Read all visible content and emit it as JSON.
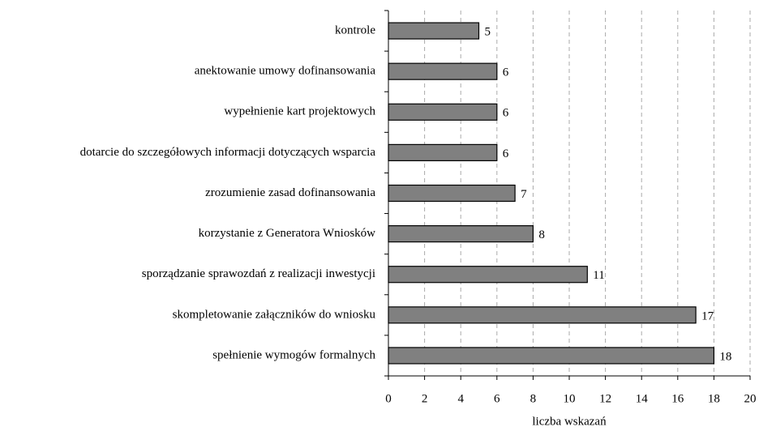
{
  "chart_data": {
    "type": "bar",
    "orientation": "horizontal",
    "categories": [
      "kontrole",
      "anektowanie umowy dofinansowania",
      "wypełnienie kart projektowych",
      "dotarcie do szczegółowych informacji dotyczących wsparcia",
      "zrozumienie zasad dofinansowania",
      "korzystanie z Generatora Wniosków",
      "sporządzanie sprawozdań z realizacji inwestycji",
      "skompletowanie załączników do wniosku",
      "spełnienie wymogów formalnych"
    ],
    "values": [
      5,
      6,
      6,
      6,
      7,
      8,
      11,
      17,
      18
    ],
    "color": "#808080",
    "xlabel": "liczba wskazań",
    "xlim": [
      0,
      20
    ],
    "xticks": [
      0,
      2,
      4,
      6,
      8,
      10,
      12,
      14,
      16,
      18,
      20
    ],
    "grid": true
  }
}
